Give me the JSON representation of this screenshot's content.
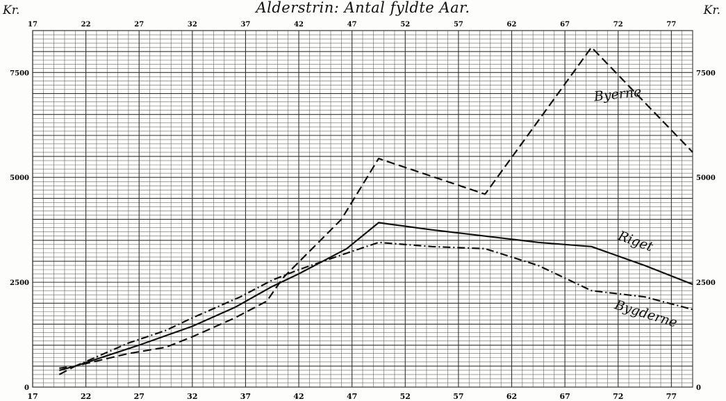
{
  "chart_data": {
    "type": "line",
    "title": "Alderstrin: Antal fyldte Aar.",
    "unit_left": "Kr.",
    "unit_right": "Kr.",
    "xlim": [
      17,
      79
    ],
    "ylim": [
      0,
      8500
    ],
    "x_ticks": [
      17,
      22,
      27,
      32,
      37,
      42,
      47,
      52,
      57,
      62,
      67,
      72,
      77
    ],
    "y_ticks_left": [
      0,
      2500,
      5000,
      7500
    ],
    "y_ticks_right": [
      0,
      2500,
      5000,
      7500
    ],
    "grid": true,
    "series": [
      {
        "name": "Byerne",
        "style": "dashed",
        "points": [
          [
            19.5,
            300
          ],
          [
            21,
            500
          ],
          [
            26,
            800
          ],
          [
            29.5,
            950
          ],
          [
            32,
            1200
          ],
          [
            36,
            1650
          ],
          [
            39,
            2050
          ],
          [
            40.5,
            2600
          ],
          [
            46,
            4000
          ],
          [
            49.5,
            5450
          ],
          [
            59.5,
            4600
          ],
          [
            69.5,
            8100
          ],
          [
            79,
            5600
          ]
        ]
      },
      {
        "name": "Riget",
        "style": "solid",
        "points": [
          [
            19.5,
            400
          ],
          [
            21,
            500
          ],
          [
            24,
            750
          ],
          [
            27,
            1000
          ],
          [
            32,
            1450
          ],
          [
            36,
            1900
          ],
          [
            39.5,
            2400
          ],
          [
            42,
            2700
          ],
          [
            46.5,
            3300
          ],
          [
            49.5,
            3920
          ],
          [
            54.5,
            3750
          ],
          [
            59.5,
            3600
          ],
          [
            64.5,
            3450
          ],
          [
            69.5,
            3350
          ],
          [
            74.5,
            2900
          ],
          [
            79,
            2450
          ]
        ]
      },
      {
        "name": "Bygderne",
        "style": "dashdot",
        "points": [
          [
            19.5,
            450
          ],
          [
            21,
            500
          ],
          [
            26,
            1050
          ],
          [
            29.5,
            1350
          ],
          [
            32,
            1650
          ],
          [
            36.5,
            2150
          ],
          [
            39.5,
            2550
          ],
          [
            42,
            2800
          ],
          [
            46,
            3150
          ],
          [
            49.5,
            3450
          ],
          [
            54.5,
            3350
          ],
          [
            59.5,
            3300
          ],
          [
            64.5,
            2900
          ],
          [
            69.5,
            2300
          ],
          [
            74.5,
            2150
          ],
          [
            79,
            1850
          ]
        ]
      }
    ]
  }
}
